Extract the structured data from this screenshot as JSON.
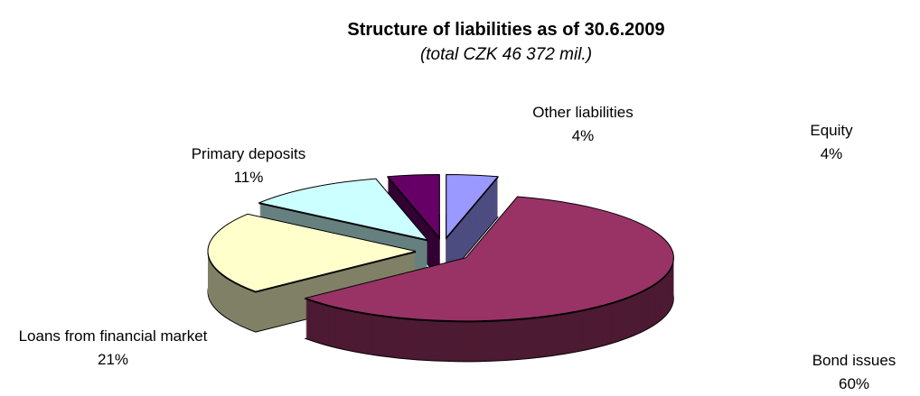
{
  "chart_data": {
    "type": "pie3d",
    "title": "Structure of liabilities as of 30.6.2009",
    "subtitle": "(total CZK 46 372 mil.)",
    "categories": [
      "Equity",
      "Bond issues",
      "Loans from financial market",
      "Primary deposits",
      "Other liabilities"
    ],
    "values": [
      4,
      60,
      21,
      11,
      4
    ],
    "value_labels": [
      "4%",
      "60%",
      "21%",
      "11%",
      "4%"
    ],
    "colors": [
      "#9999ff",
      "#993366",
      "#ffffcc",
      "#ccffff",
      "#660066"
    ]
  }
}
